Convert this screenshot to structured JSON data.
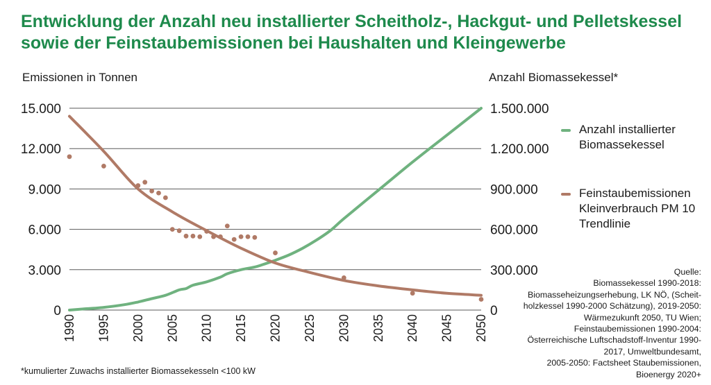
{
  "title_lines": [
    "Entwicklung der Anzahl neu installierter Scheitholz-, Hackgut- und Pelletskessel",
    "sowie der Feinstaubemissionen bei Haushalten und Kleingewerbe"
  ],
  "colors": {
    "title": "#1e8a4c",
    "green_series": "#6fb27f",
    "red_series": "#b07a66",
    "grid": "#5a5a5a"
  },
  "chart_data": {
    "type": "line",
    "xlabel": "",
    "ylabel_left": "Emissionen in Tonnen",
    "ylabel_right": "Anzahl Biomassekessel*",
    "xlim": [
      1990,
      2050
    ],
    "ylim_left": [
      0,
      15000
    ],
    "ylim_right": [
      0,
      1500000
    ],
    "x_ticks": [
      1990,
      1995,
      2000,
      2005,
      2010,
      2015,
      2020,
      2025,
      2030,
      2035,
      2040,
      2045,
      2050
    ],
    "x_tick_labels": [
      "1990",
      "1995",
      "2000",
      "2005",
      "2010",
      "2015",
      "2020",
      "2025",
      "2030",
      "2035",
      "2040",
      "2045",
      "2050"
    ],
    "y_left_ticks": [
      0,
      3000,
      6000,
      9000,
      12000,
      15000
    ],
    "y_left_tick_labels": [
      "0",
      "3.000",
      "6.000",
      "9.000",
      "12.000",
      "15.000"
    ],
    "y_right_ticks": [
      0,
      300000,
      600000,
      900000,
      1200000,
      1500000
    ],
    "y_right_tick_labels": [
      "0",
      "300.000",
      "600.000",
      "900.000",
      "1.200.000",
      "1.500.000"
    ],
    "grid": true,
    "legend_position": "right",
    "series": [
      {
        "name": "Anzahl installierter Biomassekessel",
        "axis": "right",
        "kind": "line",
        "x": [
          1990,
          1992,
          1995,
          1998,
          2000,
          2002,
          2004,
          2006,
          2007,
          2008,
          2010,
          2012,
          2013,
          2015,
          2017,
          2018,
          2020,
          2022,
          2024,
          2026,
          2028,
          2030,
          2035,
          2040,
          2045,
          2050
        ],
        "y": [
          0,
          8000,
          20000,
          40000,
          60000,
          85000,
          110000,
          150000,
          160000,
          185000,
          210000,
          245000,
          270000,
          300000,
          320000,
          335000,
          370000,
          410000,
          460000,
          520000,
          590000,
          680000,
          890000,
          1100000,
          1300000,
          1500000
        ]
      },
      {
        "name": "Feinstaubemissionen Kleinverbrauch PM 10 Trendlinie",
        "axis": "left",
        "kind": "line",
        "x": [
          1990,
          1995,
          2000,
          2005,
          2010,
          2015,
          2020,
          2025,
          2030,
          2035,
          2040,
          2045,
          2050
        ],
        "y": [
          14400,
          11800,
          9000,
          7300,
          5900,
          4600,
          3500,
          2800,
          2200,
          1800,
          1500,
          1250,
          1100
        ]
      },
      {
        "name": "Feinstaubemissionen Kleinverbrauch PM 10",
        "axis": "left",
        "kind": "scatter",
        "x": [
          1990,
          1995,
          2000,
          2001,
          2002,
          2003,
          2004,
          2005,
          2006,
          2007,
          2008,
          2009,
          2010,
          2011,
          2012,
          2013,
          2014,
          2015,
          2016,
          2017,
          2020,
          2030,
          2040,
          2050
        ],
        "y": [
          11400,
          10700,
          9250,
          9500,
          8850,
          8700,
          8350,
          6000,
          5900,
          5500,
          5500,
          5450,
          5850,
          5450,
          5450,
          6250,
          5250,
          5450,
          5450,
          5400,
          4250,
          2400,
          1250,
          800
        ]
      }
    ]
  },
  "legend": {
    "green_label": "Anzahl installierter\nBiomassekessel",
    "red_label": "Feinstaubemissionen\nKleinverbrauch PM 10\nTrendlinie"
  },
  "source_lines": [
    "Quelle:",
    "Biomassekessel 1990-2018:",
    "Biomasseheizungserhebung, LK NÖ, (Scheit-",
    "holzkessel 1990-2000 Schätzung), 2019-2050:",
    "Wärmezukunft 2050, TU Wien;",
    "Feinstaubemissionen 1990-2004:",
    "Österreichische Luftschadstoff-Inventur 1990-",
    "2017, Umweltbundesamt,",
    "2005-2050: Factsheet Staubemissionen,",
    "Bioenergy 2020+"
  ],
  "footnote": "*kumulierter Zuwachs installierter Biomassekesseln <100 kW"
}
